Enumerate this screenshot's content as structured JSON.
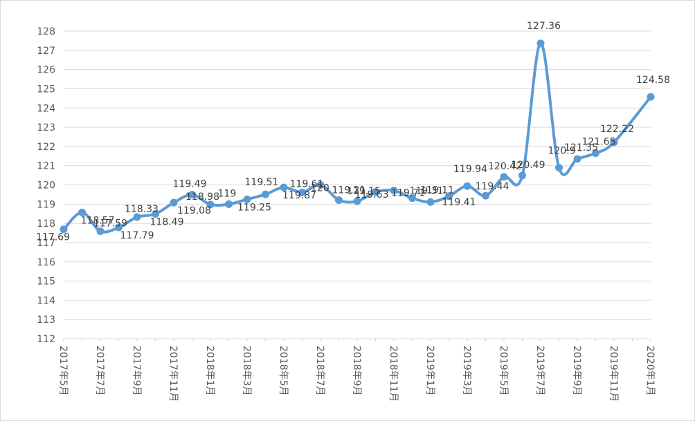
{
  "chart_data": {
    "type": "line",
    "title": "",
    "xlabel": "",
    "ylabel": "",
    "ylim": [
      112,
      128
    ],
    "ytick_step": 1,
    "grid": "horizontal",
    "legend": "none",
    "color": "#5b9bd5",
    "grid_color": "#d9d9d9",
    "x": [
      "2017年5月",
      "2017年6月",
      "2017年7月",
      "2017年8月",
      "2017年9月",
      "2017年10月",
      "2017年11月",
      "2017年12月",
      "2018年1月",
      "2018年2月",
      "2018年3月",
      "2018年4月",
      "2018年5月",
      "2018年6月",
      "2018年7月",
      "2018年8月",
      "2018年9月",
      "2018年10月",
      "2018年11月",
      "2018年12月",
      "2019年1月",
      "2019年2月",
      "2019年3月",
      "2019年4月",
      "2019年5月",
      "2019年6月",
      "2019年7月",
      "2019年8月",
      "2019年9月",
      "2019年10月",
      "2019年11月",
      "2019年12月",
      "2020年1月"
    ],
    "x_tick_labels": [
      "2017年5月",
      "",
      "2017年7月",
      "",
      "2017年9月",
      "",
      "2017年11月",
      "",
      "2018年1月",
      "",
      "2018年3月",
      "",
      "2018年5月",
      "",
      "2018年7月",
      "",
      "2018年9月",
      "",
      "2018年11月",
      "",
      "2019年1月",
      "",
      "2019年3月",
      "",
      "2019年5月",
      "",
      "2019年7月",
      "",
      "2019年9月",
      "",
      "2019年11月",
      "",
      "2020年1月"
    ],
    "values": [
      117.69,
      118.57,
      117.59,
      117.79,
      118.33,
      118.49,
      119.08,
      119.49,
      118.98,
      119.0,
      119.25,
      119.51,
      119.87,
      119.61,
      120.0,
      119.21,
      119.15,
      119.63,
      119.71,
      119.31,
      119.11,
      119.41,
      119.94,
      119.44,
      120.42,
      120.49,
      127.36,
      120.9,
      121.35,
      121.65,
      122.22,
      null,
      124.58
    ],
    "data_labels": [
      "117.69",
      "118.57",
      "117.59",
      "117.79",
      "118.33",
      "118.49",
      "119.08",
      "119.49",
      "118.98",
      "119",
      "119.25",
      "119.51",
      "119.87",
      "119.61",
      "120",
      "119.21",
      "119.15",
      "119.63",
      "119.71",
      "119.31",
      "119.11",
      "119.41",
      "119.94",
      "119.44",
      "120.42",
      "120.49",
      "127.36",
      "120.9",
      "121.35",
      "121.65",
      "122.22",
      "",
      "124.58"
    ]
  }
}
